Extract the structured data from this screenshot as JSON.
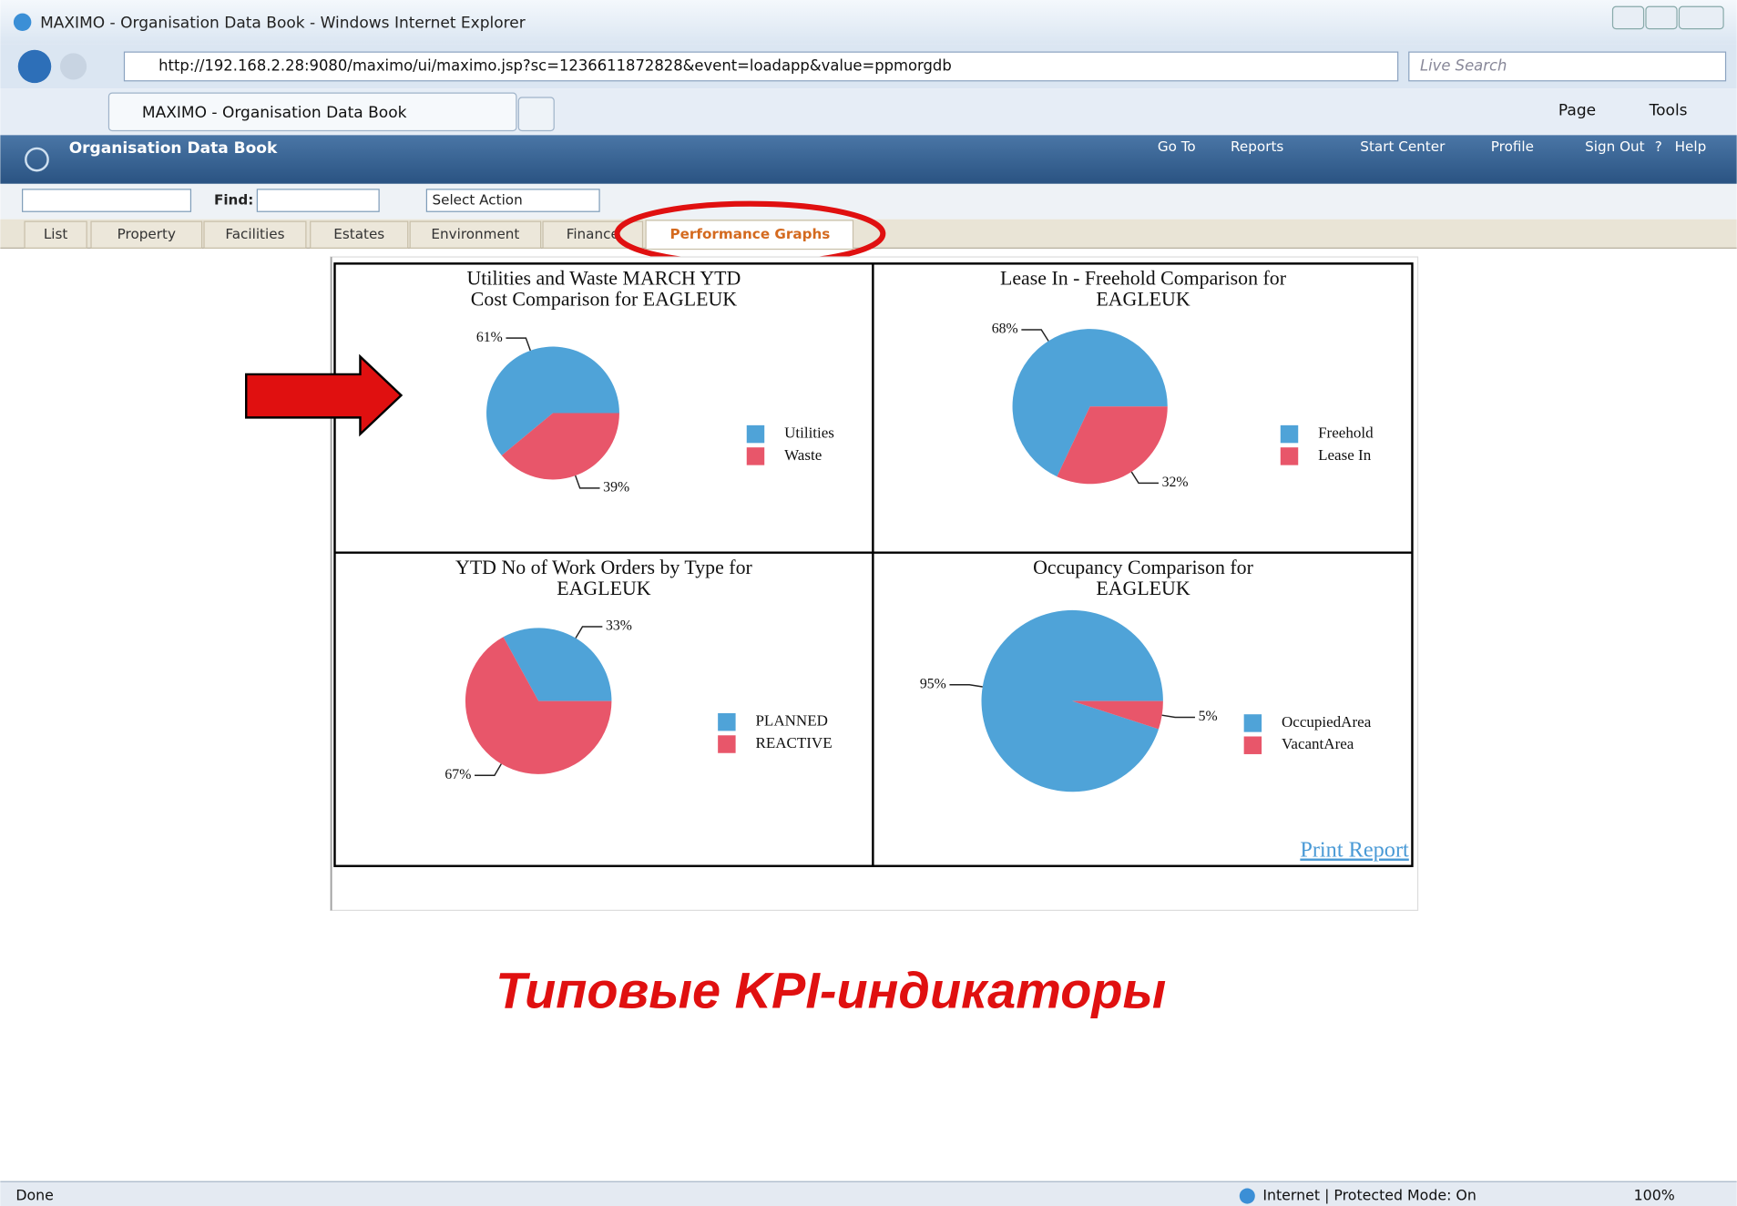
{
  "window": {
    "title": "MAXIMO - Organisation Data Book - Windows Internet Explorer",
    "url": "http://192.168.2.28:9080/maximo/ui/maximo.jsp?sc=1236611872828&event=loadapp&value=ppmorgdb",
    "search": "Live Search",
    "tab": "MAXIMO - Organisation Data Book",
    "tools": [
      "Page",
      "Tools"
    ]
  },
  "app": {
    "title": "Organisation Data Book",
    "links": [
      "Go To",
      "Reports",
      "Start Center",
      "Profile",
      "Sign Out",
      "Help"
    ],
    "find_label": "Find:",
    "action": "Select Action",
    "tabs": [
      "List",
      "Property",
      "Facilities",
      "Estates",
      "Environment",
      "Finance"
    ],
    "active_tab": "Performance Graphs"
  },
  "chart_data": [
    {
      "type": "pie",
      "title": [
        "Utilities and Waste MARCH YTD",
        "Cost Comparison for EAGLEUK"
      ],
      "categories": [
        "Utilities",
        "Waste"
      ],
      "values": [
        61,
        39
      ],
      "value_labels": [
        "61%",
        "39%"
      ],
      "colors": [
        "#4fa3d8",
        "#e8566a"
      ]
    },
    {
      "type": "pie",
      "title": [
        "Lease In - Freehold Comparison for",
        "EAGLEUK"
      ],
      "categories": [
        "Freehold",
        "Lease In"
      ],
      "values": [
        68,
        32
      ],
      "value_labels": [
        "68%",
        "32%"
      ],
      "colors": [
        "#4fa3d8",
        "#e8566a"
      ]
    },
    {
      "type": "pie",
      "title": [
        "YTD No of Work Orders by Type for",
        "EAGLEUK"
      ],
      "categories": [
        "PLANNED",
        "REACTIVE"
      ],
      "values": [
        33,
        67
      ],
      "value_labels": [
        "33%",
        "67%"
      ],
      "colors": [
        "#4fa3d8",
        "#e8566a"
      ]
    },
    {
      "type": "pie",
      "title": [
        "Occupancy Comparison for",
        "EAGLEUK"
      ],
      "categories": [
        "OccupiedArea",
        "VacantArea"
      ],
      "values": [
        95,
        5
      ],
      "value_labels": [
        "95%",
        "5%"
      ],
      "colors": [
        "#4fa3d8",
        "#e8566a"
      ]
    }
  ],
  "print_link": "Print Report",
  "caption": "Типовые KPI-индикаторы",
  "status": {
    "left": "Done",
    "zone": "Internet | Protected Mode: On",
    "zoom": "100%"
  }
}
